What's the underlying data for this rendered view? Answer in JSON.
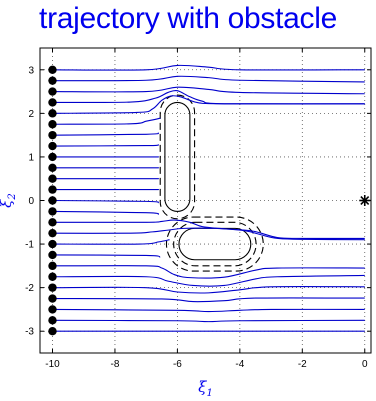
{
  "chart_data": {
    "type": "line",
    "title": "trajectory with obstacle",
    "xlabel": {
      "symbol": "ξ",
      "sub": "1"
    },
    "ylabel": {
      "symbol": "ξ",
      "sub": "2"
    },
    "xlim": [
      -10.4,
      0.2
    ],
    "ylim": [
      -3.5,
      3.5
    ],
    "xticks": [
      -10,
      -8,
      -6,
      -4,
      -2,
      0
    ],
    "yticks": [
      -3,
      -2,
      -1,
      0,
      1,
      2,
      3
    ],
    "grid": true,
    "grid_style": "dotted",
    "line_color": "#0000cc",
    "start_marker_color": "#000000",
    "start_points_x": -10,
    "start_points_y": [
      -3,
      -2.75,
      -2.5,
      -2.25,
      -2,
      -1.75,
      -1.5,
      -1.25,
      -1,
      -0.75,
      -0.5,
      -0.25,
      0,
      0.25,
      0.5,
      0.75,
      1,
      1.25,
      1.5,
      1.75,
      2,
      2.25,
      2.5,
      2.75,
      3
    ],
    "target_point": {
      "x": 0,
      "y": 0,
      "marker": "asterisk"
    },
    "series": [
      {
        "values": [
          [
            -10,
            3.0
          ],
          [
            -7,
            3.0
          ],
          [
            -6,
            3.1
          ],
          [
            -5,
            3.06
          ],
          [
            -4,
            3.0
          ],
          [
            0,
            3.0
          ]
        ]
      },
      {
        "values": [
          [
            -10,
            2.75
          ],
          [
            -7,
            2.76
          ],
          [
            -6,
            2.85
          ],
          [
            -5,
            2.82
          ],
          [
            -4,
            2.76
          ],
          [
            0,
            2.72
          ]
        ]
      },
      {
        "values": [
          [
            -10,
            2.5
          ],
          [
            -7,
            2.5
          ],
          [
            -6,
            2.6
          ],
          [
            -5,
            2.55
          ],
          [
            -4,
            2.48
          ],
          [
            0,
            2.45
          ]
        ]
      },
      {
        "values": [
          [
            -10,
            2.25
          ],
          [
            -7.5,
            2.26
          ],
          [
            -6.7,
            2.35
          ],
          [
            -6.3,
            2.48
          ],
          [
            -6.0,
            2.52
          ],
          [
            -5.6,
            2.38
          ],
          [
            -5.2,
            2.28
          ],
          [
            -4.5,
            2.22
          ],
          [
            0,
            2.22
          ]
        ]
      },
      {
        "values": [
          [
            -10,
            2.0
          ],
          [
            -7.3,
            2.02
          ],
          [
            -6.8,
            2.1
          ],
          [
            -6.5,
            2.3
          ],
          [
            -6.2,
            2.4
          ],
          [
            -5.9,
            2.38
          ],
          [
            -5.6,
            2.3
          ],
          [
            -5.3,
            2.24
          ],
          [
            -4.5,
            2.22
          ],
          [
            0,
            2.22
          ]
        ]
      },
      {
        "values": [
          [
            -10,
            1.75
          ],
          [
            -7.5,
            1.76
          ],
          [
            -7.0,
            1.82
          ],
          [
            -6.6,
            1.88
          ],
          [
            -6.55,
            1.9
          ]
        ]
      },
      {
        "values": [
          [
            -10,
            1.5
          ],
          [
            -7.0,
            1.52
          ],
          [
            -6.6,
            1.55
          ]
        ]
      },
      {
        "values": [
          [
            -10,
            1.25
          ],
          [
            -7.0,
            1.26
          ],
          [
            -6.6,
            1.28
          ]
        ]
      },
      {
        "values": [
          [
            -10,
            1.0
          ],
          [
            -7.0,
            1.0
          ],
          [
            -6.6,
            1.0
          ]
        ]
      },
      {
        "values": [
          [
            -10,
            0.75
          ],
          [
            -7.0,
            0.75
          ],
          [
            -6.6,
            0.75
          ]
        ]
      },
      {
        "values": [
          [
            -10,
            0.5
          ],
          [
            -7.0,
            0.5
          ],
          [
            -6.6,
            0.5
          ]
        ]
      },
      {
        "values": [
          [
            -10,
            0.25
          ],
          [
            -7.0,
            0.25
          ],
          [
            -6.6,
            0.25
          ]
        ]
      },
      {
        "values": [
          [
            -10,
            0.0
          ],
          [
            -7.0,
            -0.02
          ],
          [
            -6.6,
            -0.05
          ]
        ]
      },
      {
        "values": [
          [
            -10,
            -0.25
          ],
          [
            -7.0,
            -0.28
          ],
          [
            -6.6,
            -0.32
          ]
        ]
      },
      {
        "values": [
          [
            -10,
            -0.5
          ],
          [
            -7.0,
            -0.5
          ],
          [
            -6.5,
            -0.48
          ],
          [
            -6.1,
            -0.45
          ],
          [
            -5.6,
            -0.5
          ],
          [
            -5.2,
            -0.6
          ],
          [
            -4.5,
            -0.65
          ],
          [
            -3.6,
            -0.7
          ],
          [
            -2.8,
            -0.85
          ],
          [
            -2,
            -0.87
          ],
          [
            0,
            -0.87
          ]
        ]
      },
      {
        "values": [
          [
            -10,
            -0.75
          ],
          [
            -7.5,
            -0.75
          ],
          [
            -6.8,
            -0.72
          ],
          [
            -6.3,
            -0.68
          ],
          [
            -5.8,
            -0.64
          ],
          [
            -4.8,
            -0.64
          ],
          [
            -3.8,
            -0.7
          ],
          [
            -2.9,
            -0.86
          ],
          [
            -2,
            -0.89
          ],
          [
            0,
            -0.9
          ]
        ]
      },
      {
        "values": [
          [
            -10,
            -1.0
          ],
          [
            -7.2,
            -1.0
          ],
          [
            -6.6,
            -0.95
          ],
          [
            -6.25,
            -0.9
          ]
        ]
      },
      {
        "values": [
          [
            -10,
            -1.25
          ],
          [
            -7.0,
            -1.26
          ],
          [
            -6.55,
            -1.3
          ]
        ]
      },
      {
        "values": [
          [
            -10,
            -1.5
          ],
          [
            -7.0,
            -1.5
          ],
          [
            -6.5,
            -1.55
          ],
          [
            -6.1,
            -1.7
          ],
          [
            -5.6,
            -1.77
          ],
          [
            -4.5,
            -1.76
          ],
          [
            -3.5,
            -1.6
          ],
          [
            -2.8,
            -1.55
          ],
          [
            0,
            -1.55
          ]
        ]
      },
      {
        "values": [
          [
            -10,
            -1.75
          ],
          [
            -7.0,
            -1.75
          ],
          [
            -6.3,
            -1.85
          ],
          [
            -5.5,
            -1.95
          ],
          [
            -4.5,
            -1.95
          ],
          [
            -3.5,
            -1.8
          ],
          [
            -2.8,
            -1.75
          ],
          [
            0,
            -1.72
          ]
        ]
      },
      {
        "values": [
          [
            -10,
            -2.0
          ],
          [
            -7.0,
            -2.0
          ],
          [
            -6.0,
            -2.1
          ],
          [
            -5.0,
            -2.12
          ],
          [
            -4.0,
            -2.05
          ],
          [
            -3.0,
            -1.98
          ],
          [
            0,
            -1.98
          ]
        ]
      },
      {
        "values": [
          [
            -10,
            -2.25
          ],
          [
            -6.5,
            -2.26
          ],
          [
            -5.5,
            -2.32
          ],
          [
            -4.5,
            -2.3
          ],
          [
            -3.5,
            -2.24
          ],
          [
            0,
            -2.24
          ]
        ]
      },
      {
        "values": [
          [
            -10,
            -2.5
          ],
          [
            -6.0,
            -2.52
          ],
          [
            -5.0,
            -2.55
          ],
          [
            -4.0,
            -2.52
          ],
          [
            -3.0,
            -2.5
          ],
          [
            0,
            -2.5
          ]
        ]
      },
      {
        "values": [
          [
            -10,
            -2.75
          ],
          [
            -6.0,
            -2.76
          ],
          [
            -5.0,
            -2.78
          ],
          [
            -4.0,
            -2.76
          ],
          [
            0,
            -2.75
          ]
        ]
      },
      {
        "values": [
          [
            -10,
            -3.0
          ],
          [
            0,
            -3.0
          ]
        ]
      }
    ],
    "obstacles": [
      {
        "center": [
          -6,
          1.0
        ],
        "half_width": [
          0.4,
          1.25
        ],
        "style": "solid",
        "color": "#000000"
      },
      {
        "center": [
          -6,
          1.0
        ],
        "half_width": [
          0.55,
          1.42
        ],
        "style": "dashed",
        "color": "#000000"
      },
      {
        "center": [
          -4.8,
          -1.0
        ],
        "half_width": [
          1.15,
          0.36
        ],
        "style": "solid",
        "color": "#000000"
      },
      {
        "center": [
          -4.8,
          -1.0
        ],
        "half_width": [
          1.32,
          0.5
        ],
        "style": "dashed",
        "color": "#000000"
      },
      {
        "center": [
          -4.8,
          -1.0
        ],
        "half_width": [
          1.55,
          0.62
        ],
        "style": "dashed",
        "color": "#000000"
      }
    ]
  }
}
